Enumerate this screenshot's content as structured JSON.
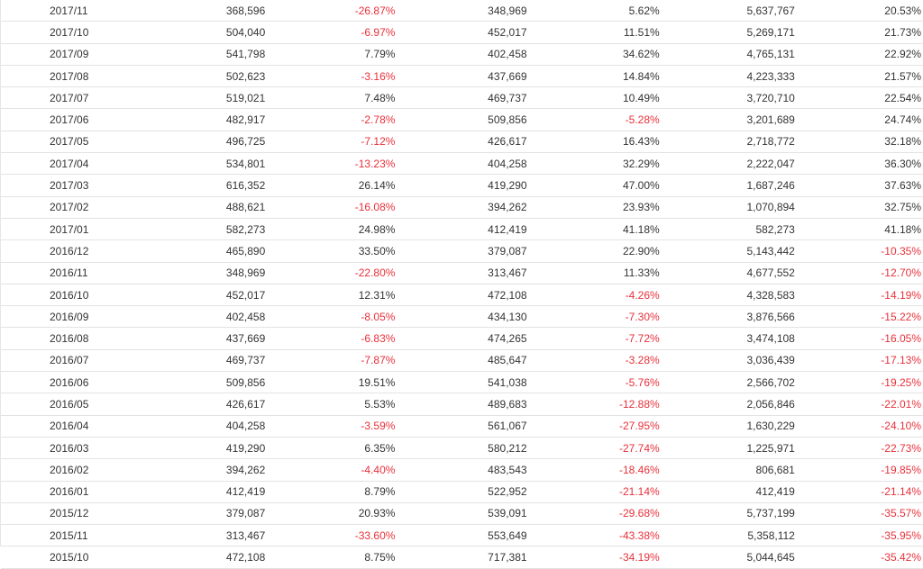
{
  "table": {
    "rows": [
      [
        "2017/11",
        "368,596",
        "-26.87%",
        "348,969",
        "5.62%",
        "5,637,767",
        "20.53%"
      ],
      [
        "2017/10",
        "504,040",
        "-6.97%",
        "452,017",
        "11.51%",
        "5,269,171",
        "21.73%"
      ],
      [
        "2017/09",
        "541,798",
        "7.79%",
        "402,458",
        "34.62%",
        "4,765,131",
        "22.92%"
      ],
      [
        "2017/08",
        "502,623",
        "-3.16%",
        "437,669",
        "14.84%",
        "4,223,333",
        "21.57%"
      ],
      [
        "2017/07",
        "519,021",
        "7.48%",
        "469,737",
        "10.49%",
        "3,720,710",
        "22.54%"
      ],
      [
        "2017/06",
        "482,917",
        "-2.78%",
        "509,856",
        "-5.28%",
        "3,201,689",
        "24.74%"
      ],
      [
        "2017/05",
        "496,725",
        "-7.12%",
        "426,617",
        "16.43%",
        "2,718,772",
        "32.18%"
      ],
      [
        "2017/04",
        "534,801",
        "-13.23%",
        "404,258",
        "32.29%",
        "2,222,047",
        "36.30%"
      ],
      [
        "2017/03",
        "616,352",
        "26.14%",
        "419,290",
        "47.00%",
        "1,687,246",
        "37.63%"
      ],
      [
        "2017/02",
        "488,621",
        "-16.08%",
        "394,262",
        "23.93%",
        "1,070,894",
        "32.75%"
      ],
      [
        "2017/01",
        "582,273",
        "24.98%",
        "412,419",
        "41.18%",
        "582,273",
        "41.18%"
      ],
      [
        "2016/12",
        "465,890",
        "33.50%",
        "379,087",
        "22.90%",
        "5,143,442",
        "-10.35%"
      ],
      [
        "2016/11",
        "348,969",
        "-22.80%",
        "313,467",
        "11.33%",
        "4,677,552",
        "-12.70%"
      ],
      [
        "2016/10",
        "452,017",
        "12.31%",
        "472,108",
        "-4.26%",
        "4,328,583",
        "-14.19%"
      ],
      [
        "2016/09",
        "402,458",
        "-8.05%",
        "434,130",
        "-7.30%",
        "3,876,566",
        "-15.22%"
      ],
      [
        "2016/08",
        "437,669",
        "-6.83%",
        "474,265",
        "-7.72%",
        "3,474,108",
        "-16.05%"
      ],
      [
        "2016/07",
        "469,737",
        "-7.87%",
        "485,647",
        "-3.28%",
        "3,036,439",
        "-17.13%"
      ],
      [
        "2016/06",
        "509,856",
        "19.51%",
        "541,038",
        "-5.76%",
        "2,566,702",
        "-19.25%"
      ],
      [
        "2016/05",
        "426,617",
        "5.53%",
        "489,683",
        "-12.88%",
        "2,056,846",
        "-22.01%"
      ],
      [
        "2016/04",
        "404,258",
        "-3.59%",
        "561,067",
        "-27.95%",
        "1,630,229",
        "-24.10%"
      ],
      [
        "2016/03",
        "419,290",
        "6.35%",
        "580,212",
        "-27.74%",
        "1,225,971",
        "-22.73%"
      ],
      [
        "2016/02",
        "394,262",
        "-4.40%",
        "483,543",
        "-18.46%",
        "806,681",
        "-19.85%"
      ],
      [
        "2016/01",
        "412,419",
        "8.79%",
        "522,952",
        "-21.14%",
        "412,419",
        "-21.14%"
      ],
      [
        "2015/12",
        "379,087",
        "20.93%",
        "539,091",
        "-29.68%",
        "5,737,199",
        "-35.57%"
      ],
      [
        "2015/11",
        "313,467",
        "-33.60%",
        "553,649",
        "-43.38%",
        "5,358,112",
        "-35.95%"
      ],
      [
        "2015/10",
        "472,108",
        "8.75%",
        "717,381",
        "-34.19%",
        "5,044,645",
        "-35.42%"
      ]
    ],
    "colors": {
      "text": "#333333",
      "negative": "#e8313b",
      "row_border": "#e3e3e3"
    }
  }
}
